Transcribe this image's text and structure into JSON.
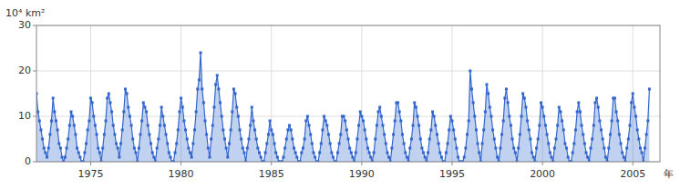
{
  "chart_data": {
    "type": "area",
    "xlabel": "年",
    "ylabel": "10⁴ km²",
    "color": "#3366CC",
    "marker": "square",
    "grid": true,
    "xlim": [
      1972.0,
      2006.5
    ],
    "ylim": [
      0,
      30
    ],
    "xticks": [
      1975,
      1980,
      1985,
      1990,
      1995,
      2000,
      2005
    ],
    "yticks": [
      0,
      10,
      20,
      30
    ],
    "x": [
      1972,
      1972.0833,
      1972.1667,
      1972.25,
      1972.3333,
      1972.4167,
      1972.5,
      1972.5833,
      1972.6667,
      1972.75,
      1972.8333,
      1972.9167,
      1973,
      1973.0833,
      1973.1667,
      1973.25,
      1973.3333,
      1973.4167,
      1973.5,
      1973.5833,
      1973.6667,
      1973.75,
      1973.8333,
      1973.9167,
      1974,
      1974.0833,
      1974.1667,
      1974.25,
      1974.3333,
      1974.4167,
      1974.5,
      1974.5833,
      1974.6667,
      1974.75,
      1974.8333,
      1974.9167,
      1975,
      1975.0833,
      1975.1667,
      1975.25,
      1975.3333,
      1975.4167,
      1975.5,
      1975.5833,
      1975.6667,
      1975.75,
      1975.8333,
      1975.9167,
      1976,
      1976.0833,
      1976.1667,
      1976.25,
      1976.3333,
      1976.4167,
      1976.5,
      1976.5833,
      1976.6667,
      1976.75,
      1976.8333,
      1976.9167,
      1977,
      1977.0833,
      1977.1667,
      1977.25,
      1977.3333,
      1977.4167,
      1977.5,
      1977.5833,
      1977.6667,
      1977.75,
      1977.8333,
      1977.9167,
      1978,
      1978.0833,
      1978.1667,
      1978.25,
      1978.3333,
      1978.4167,
      1978.5,
      1978.5833,
      1978.6667,
      1978.75,
      1978.8333,
      1978.9167,
      1979,
      1979.0833,
      1979.1667,
      1979.25,
      1979.3333,
      1979.4167,
      1979.5,
      1979.5833,
      1979.6667,
      1979.75,
      1979.8333,
      1979.9167,
      1980,
      1980.0833,
      1980.1667,
      1980.25,
      1980.3333,
      1980.4167,
      1980.5,
      1980.5833,
      1980.6667,
      1980.75,
      1980.8333,
      1980.9167,
      1981,
      1981.0833,
      1981.1667,
      1981.25,
      1981.3333,
      1981.4167,
      1981.5,
      1981.5833,
      1981.6667,
      1981.75,
      1981.8333,
      1981.9167,
      1982,
      1982.0833,
      1982.1667,
      1982.25,
      1982.3333,
      1982.4167,
      1982.5,
      1982.5833,
      1982.6667,
      1982.75,
      1982.8333,
      1982.9167,
      1983,
      1983.0833,
      1983.1667,
      1983.25,
      1983.3333,
      1983.4167,
      1983.5,
      1983.5833,
      1983.6667,
      1983.75,
      1983.8333,
      1983.9167,
      1984,
      1984.0833,
      1984.1667,
      1984.25,
      1984.3333,
      1984.4167,
      1984.5,
      1984.5833,
      1984.6667,
      1984.75,
      1984.8333,
      1984.9167,
      1985,
      1985.0833,
      1985.1667,
      1985.25,
      1985.3333,
      1985.4167,
      1985.5,
      1985.5833,
      1985.6667,
      1985.75,
      1985.8333,
      1985.9167,
      1986,
      1986.0833,
      1986.1667,
      1986.25,
      1986.3333,
      1986.4167,
      1986.5,
      1986.5833,
      1986.6667,
      1986.75,
      1986.8333,
      1986.9167,
      1987,
      1987.0833,
      1987.1667,
      1987.25,
      1987.3333,
      1987.4167,
      1987.5,
      1987.5833,
      1987.6667,
      1987.75,
      1987.8333,
      1987.9167,
      1988,
      1988.0833,
      1988.1667,
      1988.25,
      1988.3333,
      1988.4167,
      1988.5,
      1988.5833,
      1988.6667,
      1988.75,
      1988.8333,
      1988.9167,
      1989,
      1989.0833,
      1989.1667,
      1989.25,
      1989.3333,
      1989.4167,
      1989.5,
      1989.5833,
      1989.6667,
      1989.75,
      1989.8333,
      1989.9167,
      1990,
      1990.0833,
      1990.1667,
      1990.25,
      1990.3333,
      1990.4167,
      1990.5,
      1990.5833,
      1990.6667,
      1990.75,
      1990.8333,
      1990.9167,
      1991,
      1991.0833,
      1991.1667,
      1991.25,
      1991.3333,
      1991.4167,
      1991.5,
      1991.5833,
      1991.6667,
      1991.75,
      1991.8333,
      1991.9167,
      1992,
      1992.0833,
      1992.1667,
      1992.25,
      1992.3333,
      1992.4167,
      1992.5,
      1992.5833,
      1992.6667,
      1992.75,
      1992.8333,
      1992.9167,
      1993,
      1993.0833,
      1993.1667,
      1993.25,
      1993.3333,
      1993.4167,
      1993.5,
      1993.5833,
      1993.6667,
      1993.75,
      1993.8333,
      1993.9167,
      1994,
      1994.0833,
      1994.1667,
      1994.25,
      1994.3333,
      1994.4167,
      1994.5,
      1994.5833,
      1994.6667,
      1994.75,
      1994.8333,
      1994.9167,
      1995,
      1995.0833,
      1995.1667,
      1995.25,
      1995.3333,
      1995.4167,
      1995.5,
      1995.5833,
      1995.6667,
      1995.75,
      1995.8333,
      1995.9167,
      1996,
      1996.0833,
      1996.1667,
      1996.25,
      1996.3333,
      1996.4167,
      1996.5,
      1996.5833,
      1996.6667,
      1996.75,
      1996.8333,
      1996.9167,
      1997,
      1997.0833,
      1997.1667,
      1997.25,
      1997.3333,
      1997.4167,
      1997.5,
      1997.5833,
      1997.6667,
      1997.75,
      1997.8333,
      1997.9167,
      1998,
      1998.0833,
      1998.1667,
      1998.25,
      1998.3333,
      1998.4167,
      1998.5,
      1998.5833,
      1998.6667,
      1998.75,
      1998.8333,
      1998.9167,
      1999,
      1999.0833,
      1999.1667,
      1999.25,
      1999.3333,
      1999.4167,
      1999.5,
      1999.5833,
      1999.6667,
      1999.75,
      1999.8333,
      1999.9167,
      2000,
      2000.0833,
      2000.1667,
      2000.25,
      2000.3333,
      2000.4167,
      2000.5,
      2000.5833,
      2000.6667,
      2000.75,
      2000.8333,
      2000.9167,
      2001,
      2001.0833,
      2001.1667,
      2001.25,
      2001.3333,
      2001.4167,
      2001.5,
      2001.5833,
      2001.6667,
      2001.75,
      2001.8333,
      2001.9167,
      2002,
      2002.0833,
      2002.1667,
      2002.25,
      2002.3333,
      2002.4167,
      2002.5,
      2002.5833,
      2002.6667,
      2002.75,
      2002.8333,
      2002.9167,
      2003,
      2003.0833,
      2003.1667,
      2003.25,
      2003.3333,
      2003.4167,
      2003.5,
      2003.5833,
      2003.6667,
      2003.75,
      2003.8333,
      2003.9167,
      2004,
      2004.0833,
      2004.1667,
      2004.25,
      2004.3333,
      2004.4167,
      2004.5,
      2004.5833,
      2004.6667,
      2004.75,
      2004.8333,
      2004.9167,
      2005,
      2005.0833,
      2005.1667,
      2005.25,
      2005.3333,
      2005.4167,
      2005.5,
      2005.5833,
      2005.6667,
      2005.75,
      2005.8333,
      2005.9167
    ],
    "values": [
      15,
      11,
      9,
      7,
      5,
      3,
      2,
      1,
      3,
      6,
      9,
      14,
      11,
      9,
      7,
      4,
      3,
      1,
      0,
      1,
      3,
      5,
      8,
      11,
      10,
      8,
      6,
      3,
      2,
      1,
      0,
      0,
      2,
      4,
      7,
      9,
      14,
      13,
      10,
      8,
      6,
      3,
      2,
      0,
      3,
      6,
      9,
      14,
      15,
      13,
      11,
      8,
      6,
      4,
      3,
      1,
      4,
      7,
      11,
      16,
      15,
      12,
      10,
      8,
      5,
      3,
      2,
      0,
      3,
      6,
      9,
      13,
      12,
      11,
      8,
      6,
      4,
      2,
      1,
      0,
      3,
      5,
      8,
      12,
      10,
      8,
      6,
      4,
      2,
      1,
      0,
      0,
      2,
      4,
      7,
      11,
      14,
      12,
      9,
      7,
      5,
      3,
      2,
      1,
      4,
      7,
      11,
      16,
      18,
      24,
      16,
      13,
      9,
      6,
      3,
      1,
      5,
      8,
      12,
      17,
      19,
      16,
      13,
      10,
      7,
      5,
      3,
      1,
      4,
      7,
      11,
      16,
      15,
      12,
      10,
      7,
      5,
      3,
      2,
      0,
      3,
      5,
      8,
      12,
      9,
      7,
      5,
      3,
      2,
      1,
      0,
      0,
      2,
      4,
      6,
      9,
      7,
      6,
      4,
      2,
      1,
      0,
      0,
      0,
      1,
      3,
      5,
      7,
      8,
      7,
      5,
      3,
      2,
      1,
      0,
      0,
      2,
      3,
      5,
      9,
      10,
      8,
      6,
      4,
      2,
      1,
      0,
      0,
      2,
      4,
      7,
      10,
      9,
      8,
      6,
      4,
      2,
      1,
      0,
      0,
      2,
      4,
      6,
      10,
      10,
      9,
      7,
      5,
      3,
      2,
      1,
      0,
      2,
      5,
      8,
      11,
      10,
      9,
      7,
      5,
      3,
      2,
      1,
      0,
      2,
      5,
      8,
      11,
      12,
      10,
      8,
      6,
      4,
      2,
      1,
      0,
      3,
      6,
      9,
      13,
      13,
      11,
      9,
      6,
      4,
      2,
      1,
      0,
      3,
      5,
      8,
      13,
      12,
      10,
      8,
      5,
      3,
      2,
      1,
      0,
      2,
      5,
      7,
      11,
      10,
      8,
      6,
      4,
      2,
      1,
      0,
      0,
      2,
      4,
      7,
      10,
      9,
      7,
      5,
      3,
      1,
      0,
      0,
      0,
      1,
      3,
      6,
      9,
      20,
      16,
      13,
      10,
      7,
      4,
      2,
      0,
      4,
      7,
      11,
      17,
      15,
      12,
      10,
      7,
      5,
      3,
      1,
      0,
      3,
      6,
      9,
      14,
      16,
      13,
      10,
      8,
      5,
      3,
      2,
      0,
      3,
      6,
      10,
      15,
      14,
      12,
      9,
      7,
      5,
      2,
      1,
      0,
      3,
      5,
      8,
      13,
      12,
      10,
      8,
      6,
      4,
      2,
      1,
      0,
      3,
      5,
      8,
      12,
      11,
      9,
      7,
      4,
      3,
      1,
      0,
      0,
      2,
      4,
      7,
      11,
      13,
      11,
      8,
      6,
      4,
      2,
      1,
      0,
      3,
      5,
      8,
      13,
      14,
      12,
      9,
      7,
      5,
      3,
      1,
      0,
      3,
      6,
      9,
      14,
      14,
      11,
      9,
      6,
      4,
      2,
      1,
      0,
      3,
      5,
      8,
      13,
      15,
      12,
      10,
      7,
      5,
      3,
      2,
      0,
      3,
      6,
      9,
      16
    ]
  }
}
